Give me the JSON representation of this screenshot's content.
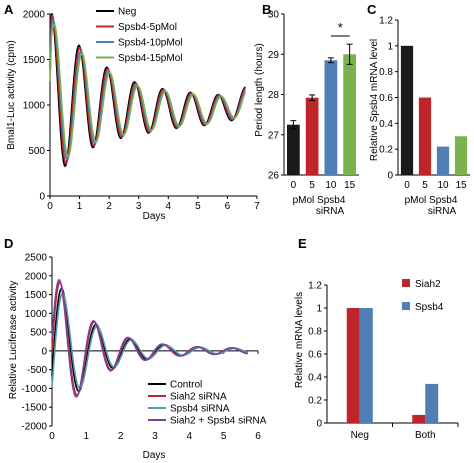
{
  "panels": {
    "A": {
      "letter": "A",
      "chart_data": {
        "type": "line",
        "xlabel": "Days",
        "ylabel": "Bmal1-Luc activity (cpm)",
        "xlim": [
          0,
          7
        ],
        "ylim": [
          0,
          2000
        ],
        "xticks": [
          0,
          1,
          2,
          3,
          4,
          5,
          6,
          7
        ],
        "yticks": [
          0,
          500,
          1000,
          1500,
          2000
        ],
        "grid": false,
        "legend": "top-right",
        "series": [
          {
            "name": "Neg",
            "color": "#000000",
            "phase": 0.0,
            "amp": 1.0
          },
          {
            "name": "Spsb4-5pMol",
            "color": "#c0242b",
            "phase": 0.03,
            "amp": 0.97
          },
          {
            "name": "Spsb4-10pMol",
            "color": "#4f7fb5",
            "phase": 0.07,
            "amp": 0.93
          },
          {
            "name": "Spsb4-15pMol",
            "color": "#79b24f",
            "phase": 0.1,
            "amp": 0.9
          }
        ],
        "waveform": {
          "x_max": 6.6,
          "period": 0.94,
          "baseline_start": 1100,
          "baseline_end": 950,
          "amplitude_start": 950,
          "amplitude_decay_days": 1.8,
          "amplitude_floor": 130,
          "first_peak_x": 0.05,
          "tail_rise_start": 5.9,
          "tail_end": 1150
        }
      }
    },
    "B": {
      "letter": "B",
      "chart_data": {
        "type": "bar",
        "categories": [
          "0",
          "5",
          "10",
          "15"
        ],
        "values": [
          27.25,
          27.92,
          28.85,
          29.0
        ],
        "errors": [
          0.1,
          0.07,
          0.06,
          0.25
        ],
        "colors": [
          "#1a1a1a",
          "#c0242b",
          "#4f7fb5",
          "#79b24f"
        ],
        "ylabel": "Period length (hours)",
        "ylim": [
          26,
          30
        ],
        "yticks": [
          26,
          27,
          28,
          29,
          30
        ],
        "xlabel_line1": "pMol Spsb4",
        "xlabel_line2": "siRNA",
        "annotation": "*"
      }
    },
    "C": {
      "letter": "C",
      "chart_data": {
        "type": "bar",
        "categories": [
          "0",
          "5",
          "10",
          "15"
        ],
        "values": [
          1.0,
          0.6,
          0.22,
          0.3
        ],
        "colors": [
          "#1a1a1a",
          "#c0242b",
          "#4f7fb5",
          "#79b24f"
        ],
        "ylabel": "Relative Spsb4 mRNA level",
        "ylim": [
          0,
          1.2
        ],
        "yticks": [
          0,
          0.2,
          0.4,
          0.6,
          0.8,
          1,
          1.2
        ],
        "xlabel_line1": "pMol Spsb4",
        "xlabel_line2": "siRNA"
      }
    },
    "D": {
      "letter": "D",
      "chart_data": {
        "type": "line",
        "xlabel": "Days",
        "ylabel": "Relative Luciferase activity",
        "xlim": [
          0,
          6
        ],
        "ylim": [
          -2000,
          2500
        ],
        "xticks": [
          0,
          1,
          2,
          3,
          4,
          5,
          6
        ],
        "yticks": [
          -2000,
          -1500,
          -1000,
          -500,
          0,
          500,
          1000,
          1500,
          2000,
          2500
        ],
        "grid": false,
        "legend": "bottom-right",
        "series": [
          {
            "name": "Control",
            "color": "#000000",
            "phase": 0.05,
            "amp": 0.95
          },
          {
            "name": "Siah2 siRNA",
            "color": "#c0242b",
            "phase": 0.0,
            "amp": 1.0
          },
          {
            "name": "Spsb4 siRNA",
            "color": "#4f9ea8",
            "phase": 0.08,
            "amp": 0.9
          },
          {
            "name": "Siah2 + Spsb4 siRNA",
            "color": "#7b3f9e",
            "phase": -0.02,
            "amp": 1.02
          }
        ],
        "waveform": {
          "x_max": 5.7,
          "period": 1.0,
          "first_peak_x": 0.25,
          "amplitude_start": 2250,
          "amplitude_decay_days": 1.1,
          "amplitude_floor": 60
        }
      }
    },
    "E": {
      "letter": "E",
      "chart_data": {
        "type": "bar",
        "categories": [
          "Neg",
          "Both"
        ],
        "series": [
          {
            "name": "Siah2",
            "color": "#c0242b",
            "values": [
              1.0,
              0.07
            ]
          },
          {
            "name": "Spsb4",
            "color": "#4f7fb5",
            "values": [
              1.0,
              0.34
            ]
          }
        ],
        "ylabel": "Relative mRNA levels",
        "ylim": [
          0,
          1.2
        ],
        "yticks": [
          0,
          0.2,
          0.4,
          0.6,
          0.8,
          1,
          1.2
        ],
        "legend": "top-right"
      }
    }
  }
}
